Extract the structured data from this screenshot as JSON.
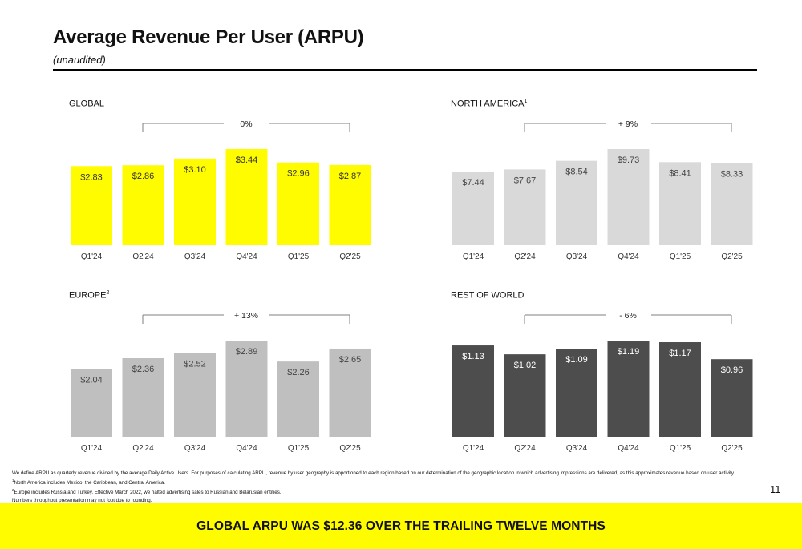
{
  "header": {
    "title": "Average Revenue Per User (ARPU)",
    "subtitle": "(unaudited)"
  },
  "chart_data": [
    {
      "type": "bar",
      "title": "GLOBAL",
      "title_sup": "",
      "change": "0%",
      "color": "#FFFC00",
      "label_color": "#333333",
      "categories": [
        "Q1'24",
        "Q2'24",
        "Q3'24",
        "Q4'24",
        "Q1'25",
        "Q2'25"
      ],
      "values": [
        2.83,
        2.86,
        3.1,
        3.44,
        2.96,
        2.87
      ],
      "labels": [
        "$2.83",
        "$2.86",
        "$3.10",
        "$3.44",
        "$2.96",
        "$2.87"
      ],
      "ylim": [
        0,
        3.44
      ]
    },
    {
      "type": "bar",
      "title": "NORTH AMERICA",
      "title_sup": "1",
      "change": "+ 9%",
      "color": "#D9D9D9",
      "label_color": "#444444",
      "categories": [
        "Q1'24",
        "Q2'24",
        "Q3'24",
        "Q4'24",
        "Q1'25",
        "Q2'25"
      ],
      "values": [
        7.44,
        7.67,
        8.54,
        9.73,
        8.41,
        8.33
      ],
      "labels": [
        "$7.44",
        "$7.67",
        "$8.54",
        "$9.73",
        "$8.41",
        "$8.33"
      ],
      "ylim": [
        0,
        9.73
      ]
    },
    {
      "type": "bar",
      "title": "EUROPE",
      "title_sup": "2",
      "change": "+ 13%",
      "color": "#BFBFBF",
      "label_color": "#444444",
      "categories": [
        "Q1'24",
        "Q2'24",
        "Q3'24",
        "Q4'24",
        "Q1'25",
        "Q2'25"
      ],
      "values": [
        2.04,
        2.36,
        2.52,
        2.89,
        2.26,
        2.65
      ],
      "labels": [
        "$2.04",
        "$2.36",
        "$2.52",
        "$2.89",
        "$2.26",
        "$2.65"
      ],
      "ylim": [
        0,
        2.89
      ]
    },
    {
      "type": "bar",
      "title": "REST OF WORLD",
      "title_sup": "",
      "change": "- 6%",
      "color": "#4D4D4D",
      "label_color": "#FFFFFF",
      "categories": [
        "Q1'24",
        "Q2'24",
        "Q3'24",
        "Q4'24",
        "Q1'25",
        "Q2'25"
      ],
      "values": [
        1.13,
        1.02,
        1.09,
        1.19,
        1.17,
        0.96
      ],
      "labels": [
        "$1.13",
        "$1.02",
        "$1.09",
        "$1.19",
        "$1.17",
        "$0.96"
      ],
      "ylim": [
        0,
        1.19
      ]
    }
  ],
  "footnotes": {
    "line1": "We define ARPU as quarterly revenue divided by the average Daily Active Users. For purposes of calculating ARPU, revenue by user geography is apportioned to each region based on our determination of the geographic location in which advertising impressions are delivered, as this approximates revenue based on user activity.",
    "line2_sup": "1",
    "line2": "North America includes Mexico, the Caribbean, and Central America.",
    "line3_sup": "2",
    "line3": "Europe includes Russia and Turkey. Effective March 2022, we halted advertising sales to Russian and Belarusian entities.",
    "line4": "Numbers throughout presentation may not foot due to rounding."
  },
  "page_number": "11",
  "banner": {
    "text": "GLOBAL ARPU WAS $12.36 OVER THE TRAILING TWELVE MONTHS"
  }
}
